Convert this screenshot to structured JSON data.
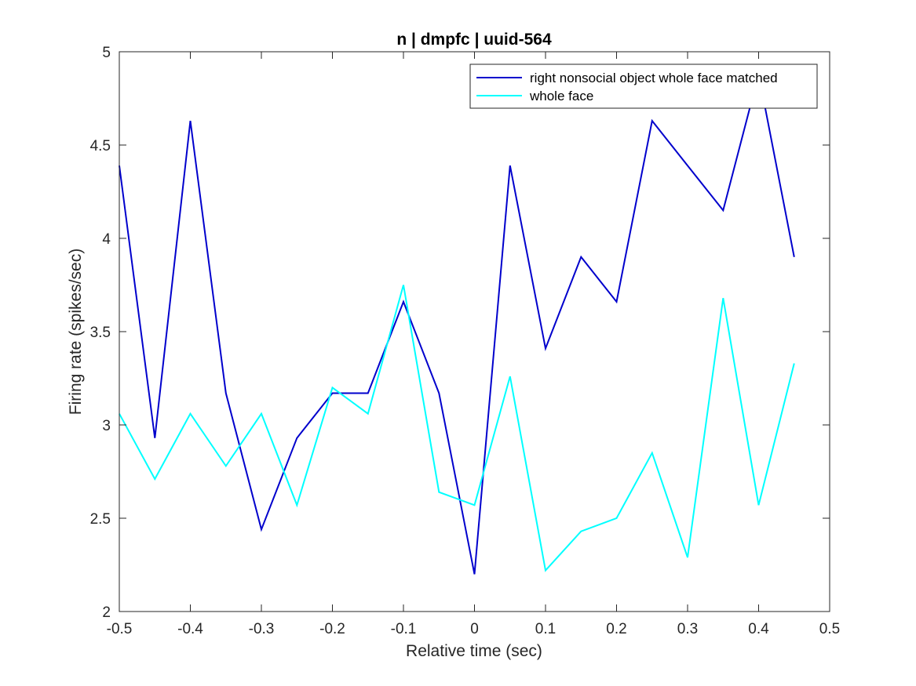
{
  "chart_data": {
    "type": "line",
    "title": "n | dmpfc | uuid-564",
    "xlabel": "Relative time (sec)",
    "ylabel": "Firing rate (spikes/sec)",
    "xlim": [
      -0.5,
      0.5
    ],
    "ylim": [
      2,
      5
    ],
    "xticks": [
      -0.5,
      -0.4,
      -0.3,
      -0.2,
      -0.1,
      0,
      0.1,
      0.2,
      0.3,
      0.4,
      0.5
    ],
    "xtick_labels": [
      "-0.5",
      "-0.4",
      "-0.3",
      "-0.2",
      "-0.1",
      "0",
      "0.1",
      "0.2",
      "0.3",
      "0.4",
      "0.5"
    ],
    "yticks": [
      2,
      2.5,
      3,
      3.5,
      4,
      4.5,
      5
    ],
    "ytick_labels": [
      "2",
      "2.5",
      "3",
      "3.5",
      "4",
      "4.5",
      "5"
    ],
    "grid": false,
    "legend_position": "top-right",
    "x": [
      -0.5,
      -0.45,
      -0.4,
      -0.35,
      -0.3,
      -0.25,
      -0.2,
      -0.15,
      -0.1,
      -0.05,
      0,
      0.05,
      0.1,
      0.15,
      0.2,
      0.25,
      0.3,
      0.35,
      0.4,
      0.45
    ],
    "series": [
      {
        "name": "right nonsocial object whole face matched",
        "color": "#0000cc",
        "values": [
          4.39,
          2.93,
          4.63,
          3.17,
          2.44,
          2.93,
          3.17,
          3.17,
          3.66,
          3.17,
          2.2,
          4.39,
          3.41,
          3.9,
          3.66,
          4.63,
          4.39,
          4.15,
          4.88,
          3.9
        ]
      },
      {
        "name": "whole face",
        "color": "#00ffff",
        "values": [
          3.06,
          2.71,
          3.06,
          2.78,
          3.06,
          2.57,
          3.2,
          3.06,
          3.75,
          2.64,
          2.57,
          3.26,
          2.22,
          2.43,
          2.5,
          2.85,
          2.29,
          3.68,
          2.57,
          3.33
        ]
      }
    ]
  }
}
